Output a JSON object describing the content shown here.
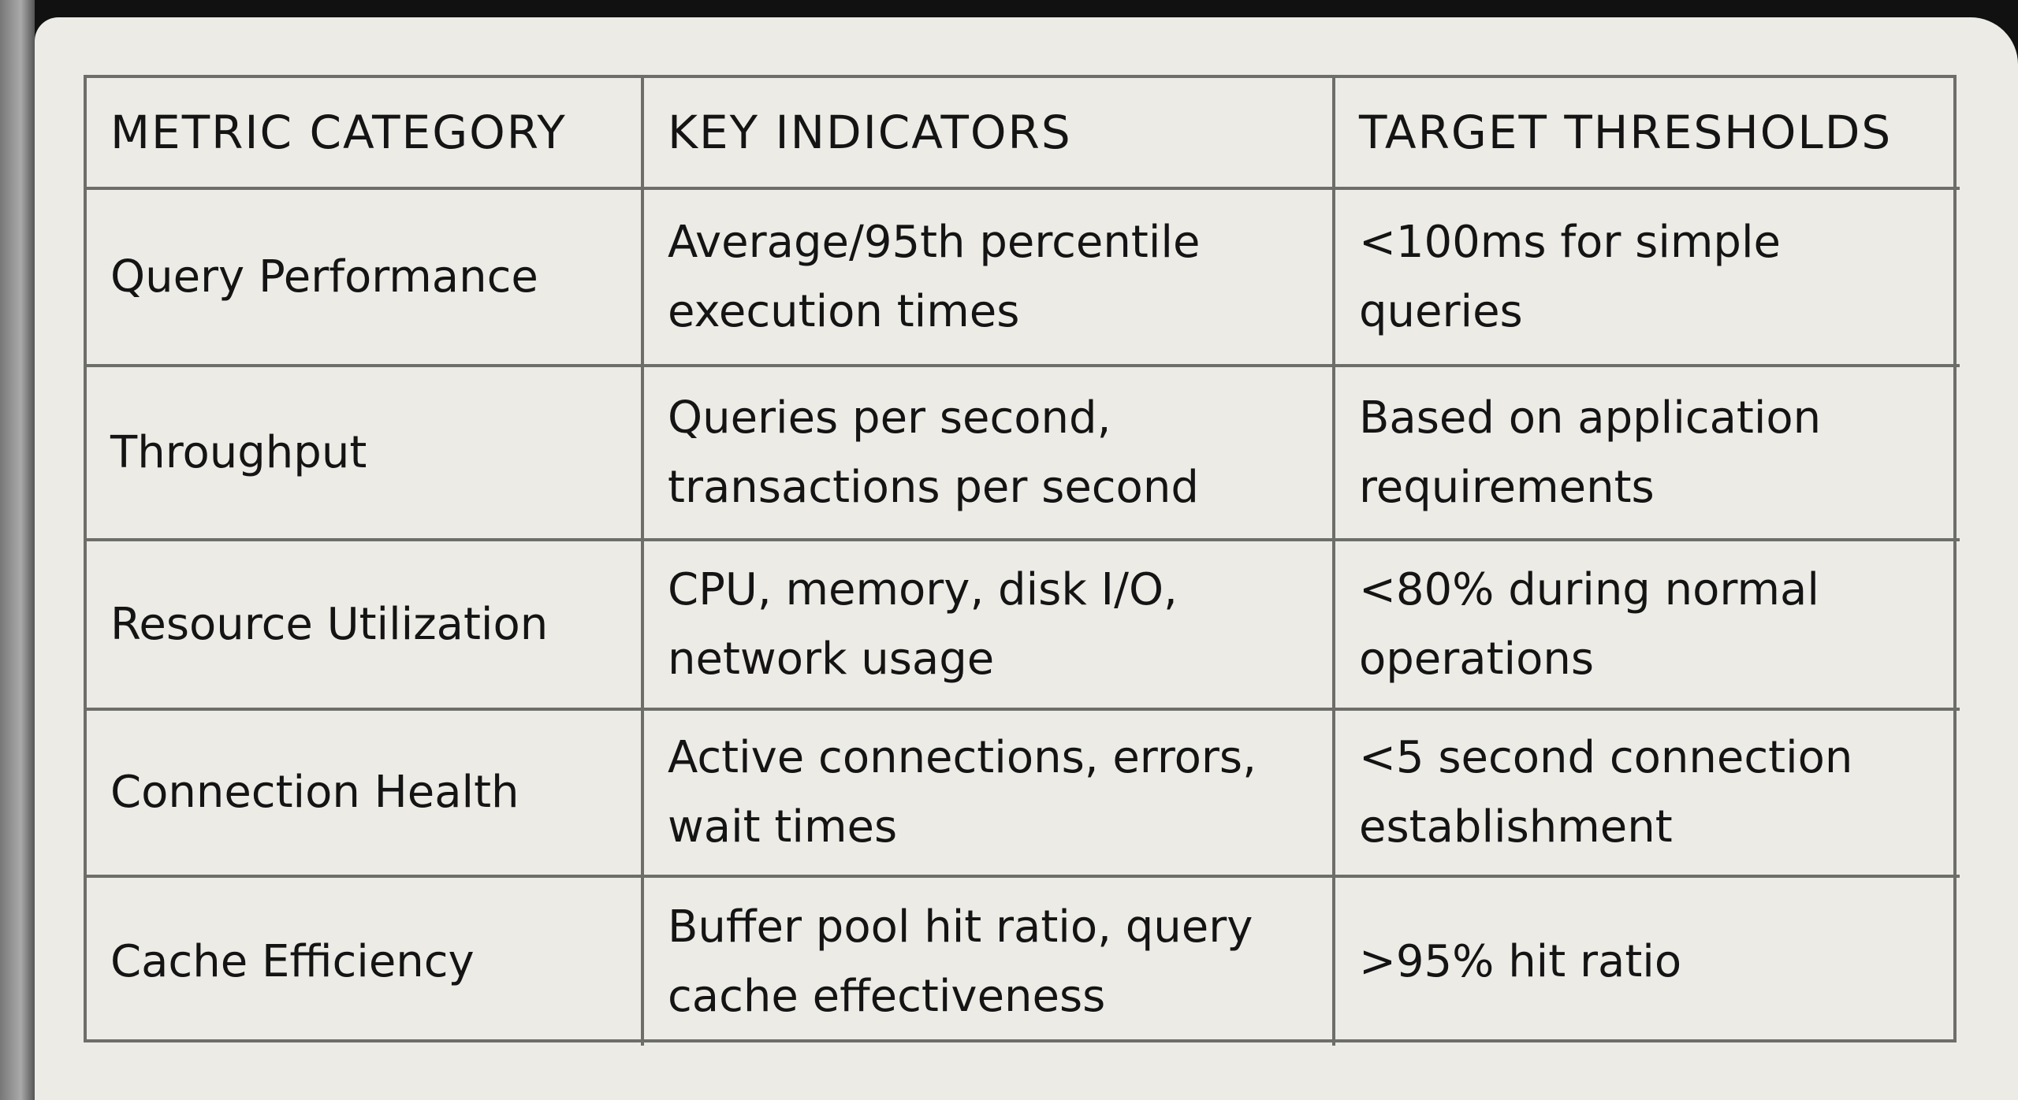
{
  "table": {
    "header": [
      "METRIC CATEGORY",
      "KEY INDICATORS",
      "TARGET THRESHOLDS"
    ],
    "rows": [
      [
        "Query Performance",
        "Average/95th percentile execution times",
        "<100ms for simple queries"
      ],
      [
        "Throughput",
        "Queries per second, transactions per second",
        "Based on application requirements"
      ],
      [
        "Resource Utilization",
        "CPU, memory, disk I/O, network usage",
        "<80% during normal operations"
      ],
      [
        "Connection Health",
        "Active connections, errors, wait times",
        "<5 second connection establishment"
      ],
      [
        "Cache Efficiency",
        "Buffer pool hit ratio, query cache effectiveness",
        ">95% hit ratio"
      ]
    ]
  }
}
